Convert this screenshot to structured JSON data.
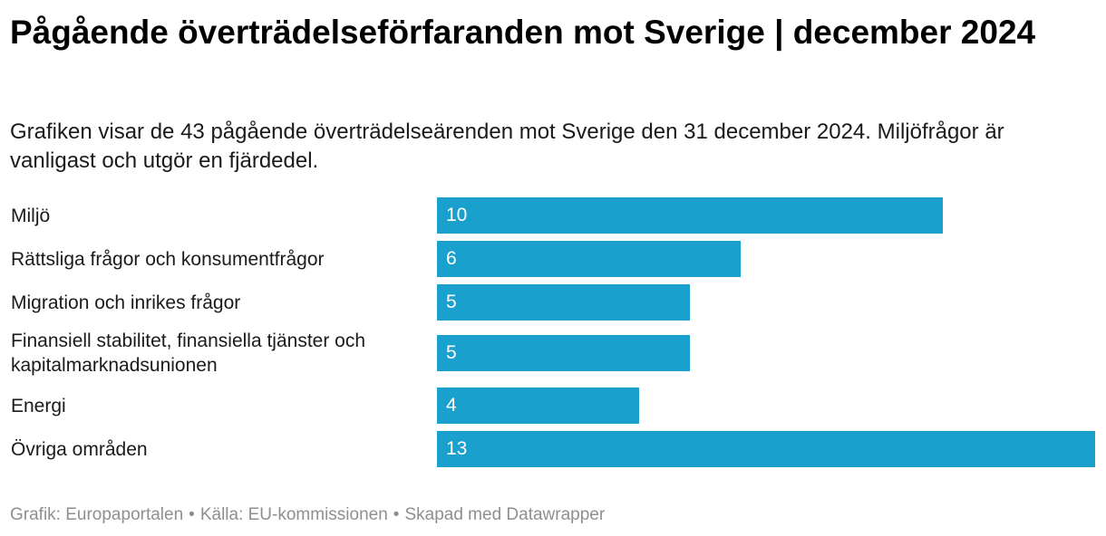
{
  "header": {
    "title": "Pågående överträdelseförfaranden mot Sverige | december 2024",
    "subtitle": "Grafiken visar de 43 pågående överträdelseärenden mot Sverige den 31 december 2024. Miljöfrågor är vanligast och utgör en fjärdedel."
  },
  "chart_data": {
    "type": "bar",
    "orientation": "horizontal",
    "title": "Pågående överträdelseförfaranden mot Sverige | december 2024",
    "categories": [
      "Miljö",
      "Rättsliga frågor och konsumentfrågor",
      "Migration och inrikes frågor",
      "Finansiell stabilitet, finansiella tjänster och kapitalmarknadsunionen",
      "Energi",
      "Övriga områden"
    ],
    "values": [
      10,
      6,
      5,
      5,
      4,
      13
    ],
    "xlim": [
      0,
      13
    ],
    "xlabel": "",
    "ylabel": "",
    "grid": false,
    "bar_color": "#1aa0cd",
    "value_label_color": "#ffffff"
  },
  "footer": {
    "credit": "Grafik: Europaportalen",
    "source": "Källa: EU-kommissionen",
    "tool": "Skapad med Datawrapper",
    "separator": "•"
  }
}
